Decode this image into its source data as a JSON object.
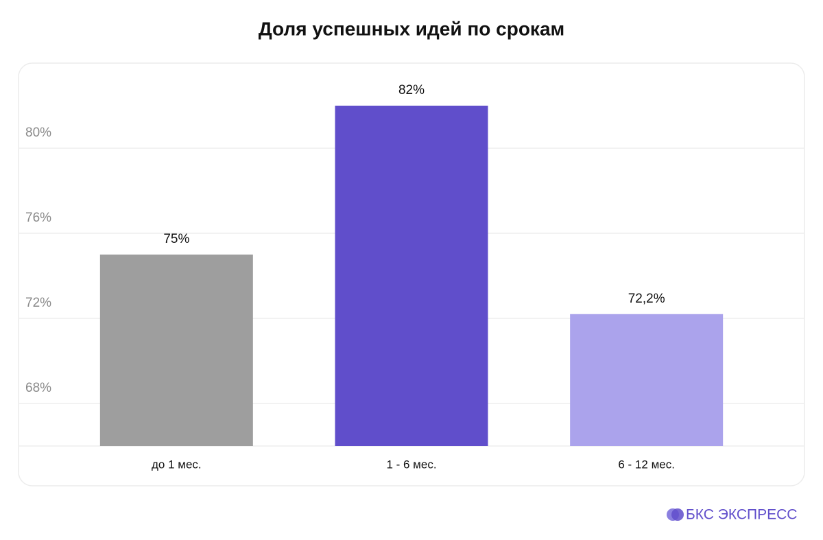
{
  "chart_data": {
    "type": "bar",
    "title": "Доля успешных идей по срокам",
    "categories": [
      "до 1 мес.",
      "1 - 6 мес.",
      "6 - 12 мес."
    ],
    "values": [
      75,
      82,
      72.2
    ],
    "value_labels": [
      "75%",
      "82%",
      "72,2%"
    ],
    "colors": [
      "#9e9e9e",
      "#604ecb",
      "#aba3ec"
    ],
    "ylim": [
      66,
      84
    ],
    "yticks": [
      {
        "value": 68,
        "label": "68%"
      },
      {
        "value": 72,
        "label": "72%"
      },
      {
        "value": 76,
        "label": "76%"
      },
      {
        "value": 80,
        "label": "80%"
      }
    ],
    "grid": true
  },
  "brand": "БКС ЭКСПРЕСС"
}
